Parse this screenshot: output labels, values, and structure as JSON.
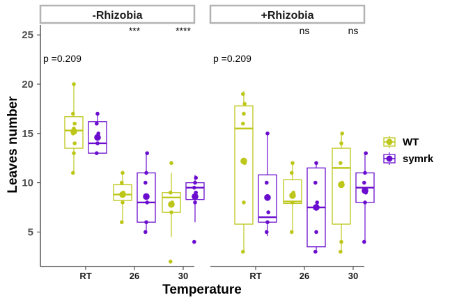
{
  "chart_data": {
    "type": "boxplot",
    "xlabel": "Temperature",
    "ylabel": "Leaves number",
    "ylim": [
      1.5,
      26
    ],
    "yticks": [
      5,
      10,
      15,
      20,
      25
    ],
    "categories": [
      "RT",
      "26",
      "30"
    ],
    "legend": {
      "position": "right"
    },
    "series": [
      {
        "name": "WT",
        "color": "#bdc71a"
      },
      {
        "name": "symrk",
        "color": "#6a0dce"
      }
    ],
    "panels": [
      {
        "label": "-Rhizobia",
        "pvalue_text": "p =0.209",
        "significance": [
          "",
          "***",
          "****"
        ],
        "groups": [
          {
            "category": "RT",
            "genotype": "WT",
            "q1": 13.5,
            "median": 15.3,
            "q3": 16.7,
            "wmin": 11,
            "wmax": 20,
            "mean": 15.2,
            "points": [
              11,
              13,
              14,
              15,
              15.5,
              16,
              17,
              20
            ]
          },
          {
            "category": "RT",
            "genotype": "symrk",
            "q1": 13,
            "median": 14,
            "q3": 16.2,
            "wmin": 13,
            "wmax": 17,
            "mean": 14.6,
            "points": [
              13,
              14,
              15,
              16,
              17
            ]
          },
          {
            "category": "26",
            "genotype": "WT",
            "q1": 8.2,
            "median": 8.8,
            "q3": 9.8,
            "wmin": 6,
            "wmax": 11,
            "mean": 8.8,
            "points": [
              6,
              8,
              9,
              10,
              11
            ]
          },
          {
            "category": "26",
            "genotype": "symrk",
            "q1": 6,
            "median": 8,
            "q3": 11,
            "wmin": 5,
            "wmax": 13,
            "mean": 8.6,
            "points": [
              5,
              6,
              8,
              10,
              11,
              13
            ]
          },
          {
            "category": "30",
            "genotype": "WT",
            "q1": 7,
            "median": 8.5,
            "q3": 9,
            "wmin": 4.5,
            "wmax": 11,
            "mean": 7.8,
            "points": [
              2,
              7,
              8,
              9,
              12
            ]
          },
          {
            "category": "30",
            "genotype": "symrk",
            "q1": 8.3,
            "median": 9.5,
            "q3": 10,
            "wmin": 6,
            "wmax": 10.8,
            "mean": 8.6,
            "points": [
              4,
              8,
              9,
              9.5,
              10,
              10.5
            ]
          }
        ]
      },
      {
        "label": "+Rhizobia",
        "pvalue_text": "p =0.209",
        "significance": [
          "",
          "ns",
          "ns"
        ],
        "groups": [
          {
            "category": "RT",
            "genotype": "WT",
            "q1": 5.8,
            "median": 15.5,
            "q3": 17.8,
            "wmin": 3,
            "wmax": 19.3,
            "mean": 12.2,
            "points": [
              3,
              8,
              12,
              16,
              17,
              18,
              19
            ]
          },
          {
            "category": "RT",
            "genotype": "symrk",
            "q1": 6,
            "median": 6.5,
            "q3": 10.8,
            "wmin": 4.6,
            "wmax": 15,
            "mean": 8.5,
            "points": [
              5,
              6,
              7,
              10,
              15
            ]
          },
          {
            "category": "26",
            "genotype": "WT",
            "q1": 7.9,
            "median": 8.1,
            "q3": 10.3,
            "wmin": 5,
            "wmax": 12,
            "mean": 8.7,
            "points": [
              5,
              8,
              9,
              11,
              12
            ]
          },
          {
            "category": "26",
            "genotype": "symrk",
            "q1": 3.5,
            "median": 7.5,
            "q3": 11.5,
            "wmin": 3,
            "wmax": 12,
            "mean": 7.5,
            "points": [
              3,
              5,
              8,
              10,
              12
            ]
          },
          {
            "category": "30",
            "genotype": "WT",
            "q1": 5.8,
            "median": 11.5,
            "q3": 13.5,
            "wmin": 3,
            "wmax": 15,
            "mean": 9.8,
            "points": [
              3,
              4,
              10,
              12,
              14,
              15
            ]
          },
          {
            "category": "30",
            "genotype": "symrk",
            "q1": 8,
            "median": 9.5,
            "q3": 11,
            "wmin": 4,
            "wmax": 13,
            "mean": 9.2,
            "points": [
              4,
              8,
              9,
              10,
              11,
              13
            ]
          }
        ]
      }
    ]
  }
}
